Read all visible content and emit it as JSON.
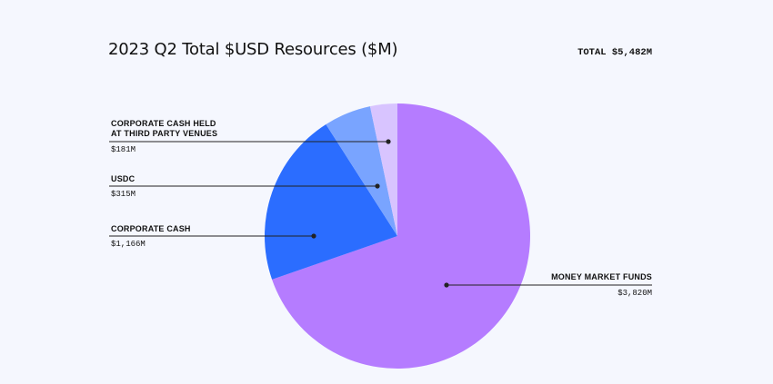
{
  "header": {
    "title": "2023 Q2 Total $USD Resources ($M)",
    "total": "TOTAL $5,482M"
  },
  "colors": {
    "background": "#f5f7fe",
    "leader": "#222222"
  },
  "chart_data": {
    "type": "pie",
    "title": "2023 Q2 Total $USD Resources ($M)",
    "total_label": "TOTAL $5,482M",
    "start": "top, clockwise",
    "slices": [
      {
        "name": "MONEY MARKET FUNDS",
        "name_lines": [
          "MONEY MARKET FUNDS"
        ],
        "value": 3820,
        "value_label": "$3,820M",
        "color": "#b57cff",
        "label_side": "right"
      },
      {
        "name": "CORPORATE CASH",
        "name_lines": [
          "CORPORATE CASH"
        ],
        "value": 1166,
        "value_label": "$1,166M",
        "color": "#2b6dff",
        "label_side": "left"
      },
      {
        "name": "USDC",
        "name_lines": [
          "USDC"
        ],
        "value": 315,
        "value_label": "$315M",
        "color": "#79a4ff",
        "label_side": "left"
      },
      {
        "name": "CORPORATE CASH HELD AT THIRD PARTY VENUES",
        "name_lines": [
          "CORPORATE CASH HELD",
          "AT THIRD PARTY VENUES"
        ],
        "value": 181,
        "value_label": "$181M",
        "color": "#d8c4ff",
        "label_side": "left"
      }
    ]
  }
}
